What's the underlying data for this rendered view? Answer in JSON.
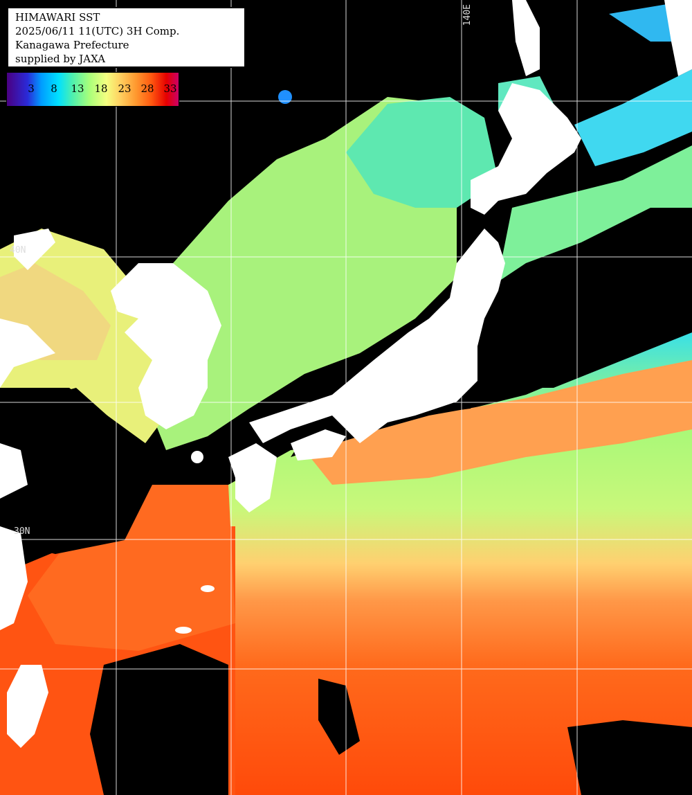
{
  "info": {
    "line1": "HIMAWARI SST",
    "line2": "2025/06/11 11(UTC) 3H Comp.",
    "line3": "Kanagawa Prefecture",
    "line4": "supplied by JAXA"
  },
  "legend": {
    "ticks": [
      "3",
      "8",
      "13",
      "18",
      "23",
      "28",
      "33"
    ]
  },
  "grid_labels": {
    "lon_140": "140E",
    "lat_upper": "40N",
    "lat_lower": "30N"
  },
  "colors": {
    "land": "#ffffff",
    "cloud_nodata": "#000000",
    "warm_sea": "#ff5a12",
    "temperate_sea": "#ffd070",
    "cool_sea": "#a4f878",
    "cold_sea": "#38e0e8",
    "grid": "#ffffff"
  }
}
